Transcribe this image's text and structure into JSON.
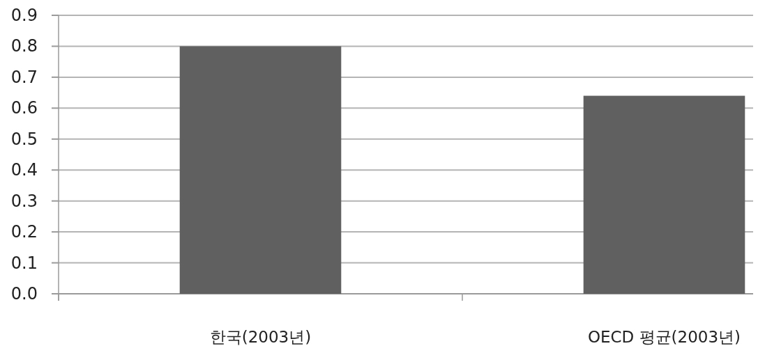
{
  "chart_data": {
    "type": "bar",
    "categories": [
      "한국(2003년)",
      "OECD 평균(2003년)"
    ],
    "values": [
      0.8,
      0.64
    ],
    "color": "#606060",
    "ylim": [
      0,
      0.9
    ],
    "yticks": [
      {
        "value": 0,
        "label": "0.0"
      },
      0.1,
      0.2,
      0.3,
      0.4,
      0.5,
      0.6,
      0.7,
      0.8,
      0.9
    ],
    "grid": "y"
  }
}
